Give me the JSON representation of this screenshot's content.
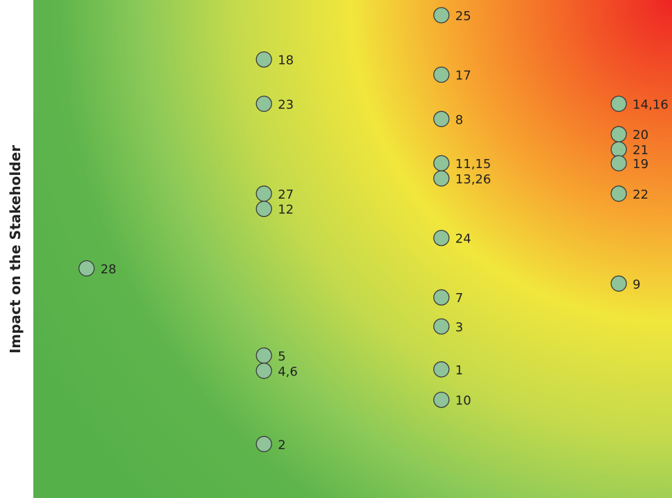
{
  "chart_data": {
    "type": "scatter",
    "title": "",
    "xlabel": "",
    "ylabel": "Impact on the Stakeholder",
    "grid": false,
    "legend": "none",
    "xlim": [
      0,
      36
    ],
    "ylim": [
      0,
      36
    ],
    "marker_color": "#8fc39a",
    "points": [
      {
        "label": "25",
        "x": 23,
        "y": 34.9
      },
      {
        "label": "18",
        "x": 13,
        "y": 31.7
      },
      {
        "label": "17",
        "x": 23,
        "y": 30.6
      },
      {
        "label": "23",
        "x": 13,
        "y": 28.5
      },
      {
        "label": "8",
        "x": 23,
        "y": 27.4
      },
      {
        "label": "14,16",
        "x": 33,
        "y": 28.5
      },
      {
        "label": "20",
        "x": 33,
        "y": 26.3
      },
      {
        "label": "21",
        "x": 33,
        "y": 25.2
      },
      {
        "label": "11,15",
        "x": 23,
        "y": 24.2
      },
      {
        "label": "19",
        "x": 33,
        "y": 24.2
      },
      {
        "label": "13,26",
        "x": 23,
        "y": 23.1
      },
      {
        "label": "27",
        "x": 13,
        "y": 22.0
      },
      {
        "label": "22",
        "x": 33,
        "y": 22.0
      },
      {
        "label": "12",
        "x": 13,
        "y": 20.9
      },
      {
        "label": "24",
        "x": 23,
        "y": 18.8
      },
      {
        "label": "28",
        "x": 3,
        "y": 16.6
      },
      {
        "label": "9",
        "x": 33,
        "y": 15.5
      },
      {
        "label": "7",
        "x": 23,
        "y": 14.5
      },
      {
        "label": "3",
        "x": 23,
        "y": 12.4
      },
      {
        "label": "5",
        "x": 13,
        "y": 10.3
      },
      {
        "label": "4,6",
        "x": 13,
        "y": 9.2
      },
      {
        "label": "1",
        "x": 23,
        "y": 9.3
      },
      {
        "label": "10",
        "x": 23,
        "y": 7.1
      },
      {
        "label": "2",
        "x": 13,
        "y": 3.9
      }
    ]
  }
}
